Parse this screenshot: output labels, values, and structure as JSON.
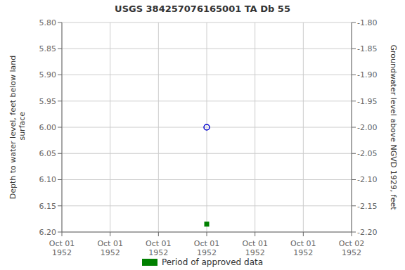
{
  "chart_data": {
    "type": "scatter",
    "title": "USGS 384257076165001 TA Db  55",
    "ylabel": "Depth to water level, feet below land\n surface",
    "y2label": "Groundwater level above NGVD 1929, feet",
    "categories": [
      "Oct 01\n1952",
      "Oct 01\n1952",
      "Oct 01\n1952",
      "Oct 01\n1952",
      "Oct 01\n1952",
      "Oct 01\n1952",
      "Oct 02\n1952"
    ],
    "series": [
      {
        "color": "#0000cc",
        "marker": "open_circle",
        "values": [
          null,
          null,
          null,
          6.0,
          null,
          null,
          null
        ]
      },
      {
        "name": "Period of approved data",
        "color": "#008000",
        "marker": "square",
        "values": [
          null,
          null,
          null,
          6.185,
          null,
          null,
          null
        ]
      }
    ],
    "ylim": [
      6.2,
      5.8
    ],
    "yticks": [
      {
        "value": 5.8,
        "label": "5.80"
      },
      {
        "value": 5.85,
        "label": "5.85"
      },
      {
        "value": 5.9,
        "label": "5.90"
      },
      {
        "value": 5.95,
        "label": "5.95"
      },
      {
        "value": 6.0,
        "label": "6.00"
      },
      {
        "value": 6.05,
        "label": "6.05"
      },
      {
        "value": 6.1,
        "label": "6.10"
      },
      {
        "value": 6.15,
        "label": "6.15"
      },
      {
        "value": 6.2,
        "label": "6.20"
      }
    ],
    "y2lim": [
      -2.2,
      -1.8
    ],
    "y2ticks": [
      {
        "value": -1.8,
        "label": "-1.80"
      },
      {
        "value": -1.85,
        "label": "-1.85"
      },
      {
        "value": -1.9,
        "label": "-1.90"
      },
      {
        "value": -1.95,
        "label": "-1.95"
      },
      {
        "value": -2.0,
        "label": "-2.00"
      },
      {
        "value": -2.05,
        "label": "-2.05"
      },
      {
        "value": -2.1,
        "label": "-2.10"
      },
      {
        "value": -2.15,
        "label": "-2.15"
      },
      {
        "value": -2.2,
        "label": "-2.20"
      }
    ],
    "grid": true,
    "legend": "bottom"
  }
}
